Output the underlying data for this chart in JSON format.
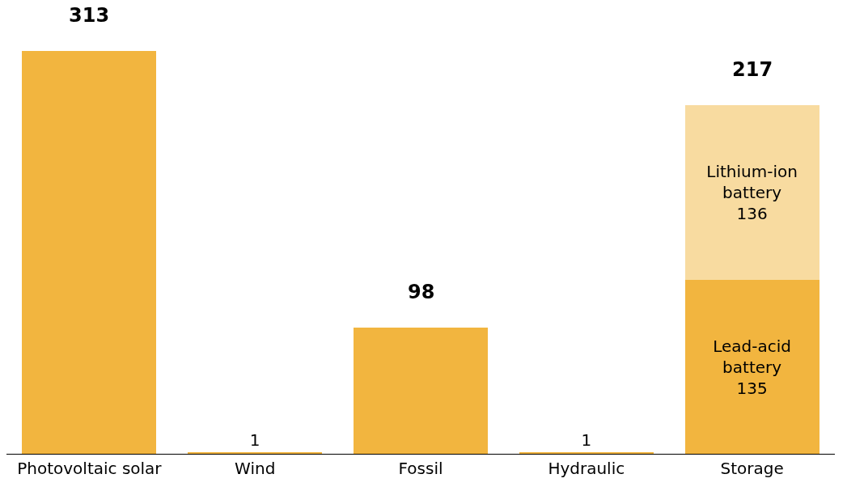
{
  "chart_data": {
    "type": "bar",
    "stacked": true,
    "categories": [
      "Photovoltaic solar",
      "Wind",
      "Fossil",
      "Hydraulic",
      "Storage"
    ],
    "series": [
      {
        "color": "#f2b53f",
        "values": [
          313,
          1,
          98,
          1,
          null
        ],
        "value_labels": [
          null,
          "1",
          null,
          "1",
          null
        ]
      },
      {
        "name": "Lead-acid battery",
        "color": "#f2b53f",
        "values": [
          null,
          null,
          null,
          null,
          135
        ],
        "value_labels": [
          null,
          null,
          null,
          null,
          "135"
        ]
      },
      {
        "name": "Lithium-ion battery",
        "color": "#f8dba0",
        "values": [
          null,
          null,
          null,
          null,
          136
        ],
        "value_labels": [
          null,
          null,
          null,
          null,
          "136"
        ]
      }
    ],
    "totals": [
      "313",
      null,
      "98",
      null,
      null
    ],
    "annotations": [
      {
        "text": "217",
        "x": "Storage",
        "y": 271
      }
    ],
    "ylim": [
      0,
      350
    ],
    "tick_labels": "x",
    "grid": false,
    "legend": false
  }
}
